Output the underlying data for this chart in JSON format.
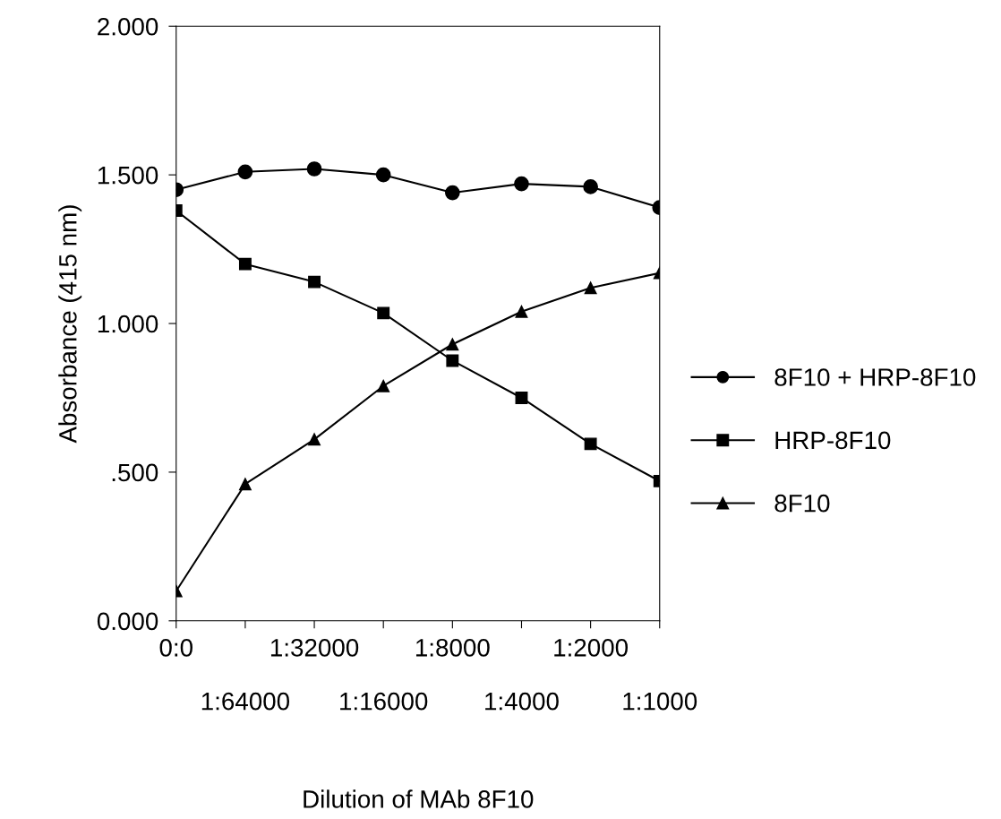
{
  "chart_data": {
    "type": "line",
    "xlabel": "Dilution of MAb 8F10",
    "ylabel": "Absorbance (415 nm)",
    "categories": [
      "0:0",
      "1:64000",
      "1:32000",
      "1:16000",
      "1:8000",
      "1:4000",
      "1:2000",
      "1:1000"
    ],
    "series": [
      {
        "name": "8F10 + HRP-8F10",
        "color": "#000000",
        "marker": "circle",
        "values": [
          1.45,
          1.51,
          1.52,
          1.5,
          1.44,
          1.47,
          1.46,
          1.39
        ]
      },
      {
        "name": "HRP-8F10",
        "color": "#000000",
        "marker": "square",
        "values": [
          1.38,
          1.2,
          1.14,
          1.035,
          0.875,
          0.75,
          0.595,
          0.47
        ]
      },
      {
        "name": "8F10",
        "color": "#000000",
        "marker": "triangle",
        "values": [
          0.1,
          0.46,
          0.61,
          0.79,
          0.93,
          1.04,
          1.12,
          1.17
        ]
      }
    ],
    "ylim": [
      0,
      2
    ],
    "yticks": [
      {
        "value": 0,
        "label": "0.000"
      },
      {
        "value": 0.5,
        "label": ".500"
      },
      {
        "value": 1,
        "label": "1.000"
      },
      {
        "value": 1.5,
        "label": "1.500"
      },
      {
        "value": 2,
        "label": "2.000"
      }
    ],
    "grid": false,
    "legend": "right",
    "line_style": "solid"
  }
}
